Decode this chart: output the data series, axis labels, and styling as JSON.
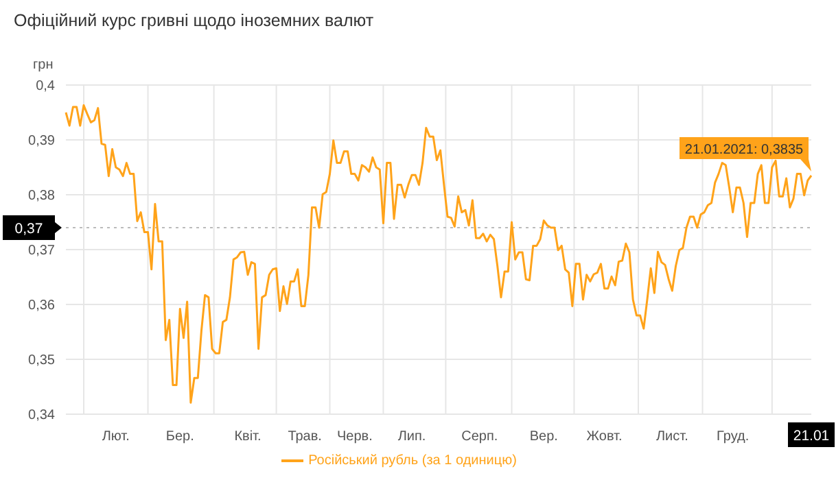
{
  "chart_data": {
    "type": "line",
    "title": "Офіційний курс гривні щодо іноземних валют",
    "ylabel": "грн",
    "categories": [
      null,
      null,
      null,
      null,
      null,
      null,
      null,
      null,
      null,
      null,
      null,
      null,
      null,
      null,
      "Лют.",
      null,
      null,
      null,
      null,
      null,
      null,
      null,
      null,
      null,
      null,
      null,
      null,
      null,
      null,
      null,
      null,
      null,
      "Бер.",
      null,
      null,
      null,
      null,
      null,
      null,
      null,
      null,
      null,
      null,
      null,
      null,
      null,
      null,
      null,
      null,
      null,
      null,
      "Квіт.",
      null,
      null,
      null,
      null,
      null,
      null,
      null,
      null,
      null,
      null,
      null,
      null,
      null,
      null,
      null,
      "Трав.",
      null,
      null,
      null,
      null,
      null,
      null,
      null,
      null,
      null,
      null,
      null,
      null,
      null,
      "Черв.",
      null,
      null,
      null,
      null,
      null,
      null,
      null,
      null,
      null,
      null,
      null,
      null,
      null,
      null,
      null,
      "Лип.",
      null,
      null,
      null,
      null,
      null,
      null,
      null,
      null,
      null,
      null,
      null,
      null,
      null,
      null,
      null,
      null,
      null,
      null,
      "Серп.",
      null,
      null,
      null,
      null,
      null,
      null,
      null,
      null,
      null,
      null,
      null,
      null,
      null,
      null,
      null,
      null,
      null,
      "Вер.",
      null,
      null,
      null,
      null,
      null,
      null,
      null,
      null,
      null,
      null,
      null,
      null,
      null,
      null,
      null,
      null,
      "Жовт.",
      null,
      null,
      null,
      null,
      null,
      null,
      null,
      null,
      null,
      null,
      null,
      null,
      null,
      null,
      null,
      null,
      null,
      null,
      "Лист.",
      null,
      null,
      null,
      null,
      null,
      null,
      null,
      null,
      null,
      null,
      null,
      null,
      null,
      null,
      null,
      null,
      "Груд.",
      null,
      null,
      null,
      null,
      null,
      null,
      null,
      null,
      null,
      null,
      null,
      null,
      null,
      null,
      null,
      null,
      null,
      null,
      null,
      null,
      null,
      "21.01"
    ],
    "series": [
      {
        "name": "Російський рубль (за 1 одиницю)",
        "color": "#ffa31a",
        "values": [
          0.395,
          0.3926,
          0.396,
          0.396,
          0.3926,
          0.3963,
          0.3947,
          0.3932,
          0.3936,
          0.3958,
          0.3893,
          0.3891,
          0.3834,
          0.3883,
          0.385,
          0.3846,
          0.3834,
          0.3858,
          0.3838,
          0.3838,
          0.3752,
          0.3768,
          0.3732,
          0.3732,
          0.3664,
          0.3783,
          0.3715,
          0.3715,
          0.3535,
          0.3572,
          0.3453,
          0.3453,
          0.3592,
          0.3539,
          0.3605,
          0.3421,
          0.3466,
          0.3466,
          0.3552,
          0.3617,
          0.3613,
          0.3519,
          0.3511,
          0.3511,
          0.3568,
          0.3572,
          0.3613,
          0.3682,
          0.3686,
          0.3695,
          0.3696,
          0.3654,
          0.3677,
          0.3674,
          0.3519,
          0.3613,
          0.3617,
          0.3654,
          0.3664,
          0.3666,
          0.3588,
          0.3633,
          0.3601,
          0.3642,
          0.3642,
          0.3664,
          0.3597,
          0.3597,
          0.3654,
          0.3777,
          0.3777,
          0.374,
          0.3801,
          0.3805,
          0.3838,
          0.3899,
          0.3858,
          0.3858,
          0.3879,
          0.3879,
          0.3838,
          0.3838,
          0.3826,
          0.3854,
          0.385,
          0.3842,
          0.3868,
          0.385,
          0.3846,
          0.3748,
          0.3858,
          0.3858,
          0.3756,
          0.3818,
          0.3818,
          0.3795,
          0.3818,
          0.3836,
          0.3836,
          0.3818,
          0.3858,
          0.3922,
          0.3906,
          0.3906,
          0.3863,
          0.3881,
          0.3819,
          0.376,
          0.3758,
          0.3742,
          0.3797,
          0.3768,
          0.3772,
          0.3744,
          0.379,
          0.3721,
          0.3721,
          0.3729,
          0.3715,
          0.3727,
          0.3719,
          0.367,
          0.3613,
          0.366,
          0.366,
          0.375,
          0.3682,
          0.3695,
          0.3695,
          0.3646,
          0.3644,
          0.3707,
          0.3707,
          0.3719,
          0.3753,
          0.3744,
          0.374,
          0.374,
          0.3699,
          0.3707,
          0.3664,
          0.3658,
          0.3597,
          0.3674,
          0.3674,
          0.3609,
          0.3654,
          0.3642,
          0.3655,
          0.3658,
          0.3674,
          0.3629,
          0.3629,
          0.3651,
          0.3635,
          0.3678,
          0.368,
          0.3711,
          0.3695,
          0.3609,
          0.358,
          0.358,
          0.3556,
          0.3609,
          0.3666,
          0.3621,
          0.3696,
          0.3677,
          0.3672,
          0.3646,
          0.3625,
          0.367,
          0.3699,
          0.3703,
          0.374,
          0.376,
          0.376,
          0.374,
          0.3764,
          0.3768,
          0.3781,
          0.3785,
          0.3822,
          0.3838,
          0.3858,
          0.3854,
          0.3813,
          0.3768,
          0.3813,
          0.3813,
          0.3785,
          0.3723,
          0.3785,
          0.3785,
          0.3838,
          0.3854,
          0.3785,
          0.3785,
          0.385,
          0.3862,
          0.3797,
          0.3797,
          0.383,
          0.3777,
          0.3793,
          0.3838,
          0.3838,
          0.3799,
          0.3826,
          0.3835
        ]
      }
    ],
    "ylim": [
      0.34,
      0.4
    ],
    "yticks": [
      {
        "value": 0.34,
        "label": "0,34"
      },
      {
        "value": 0.35,
        "label": "0,35"
      },
      {
        "value": 0.36,
        "label": "0,36"
      },
      {
        "value": 0.37,
        "label": "0,37"
      },
      {
        "value": 0.38,
        "label": "0,38"
      },
      {
        "value": 0.39,
        "label": "0,39"
      },
      {
        "value": 0.4,
        "label": "0,4"
      }
    ],
    "ref_lines": [
      {
        "axis": "y",
        "value": 0.374,
        "label": "0,37",
        "line_style": "dotted",
        "color": "#bbbbbb"
      }
    ],
    "annotations": [
      {
        "text": "21.01.2021: 0,3835",
        "x": "21.01",
        "y": 0.3835
      }
    ],
    "grid": true,
    "legend": "bottom",
    "marker": "none",
    "line_style": "solid"
  }
}
